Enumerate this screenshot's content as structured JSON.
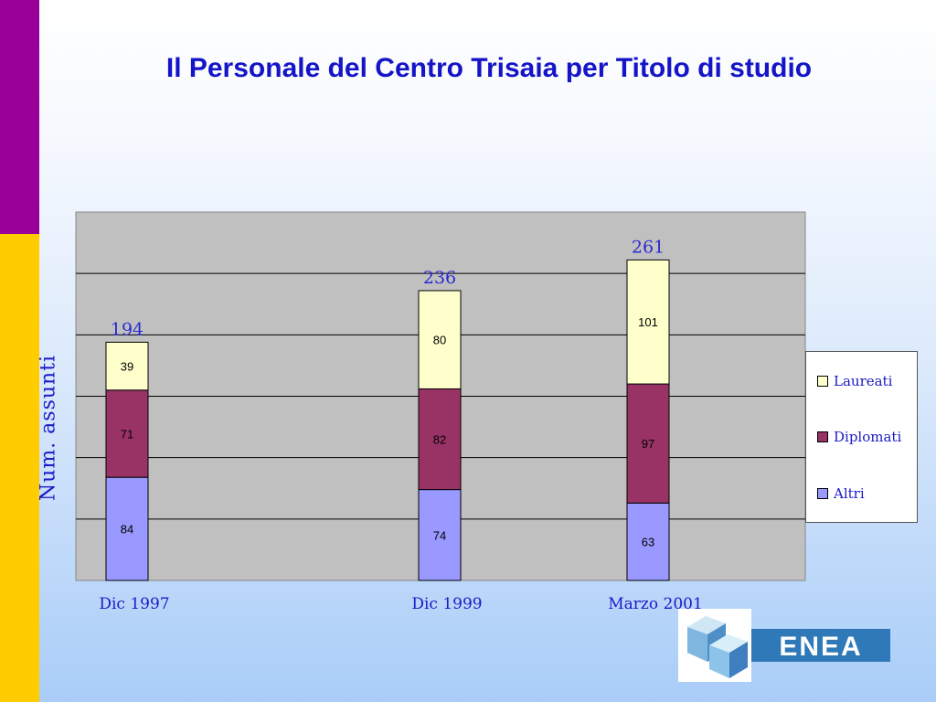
{
  "slide": {
    "title": "Il Personale del Centro Trisaia per Titolo di studio"
  },
  "colors": {
    "top_bar": "#990099",
    "bottom_bar": "#ffcc00",
    "plot_bg": "#c0c0c0",
    "title": "#1414c8"
  },
  "legend": {
    "items": [
      {
        "label": "Laureati",
        "color": "#ffffcc"
      },
      {
        "label": "Diplomati",
        "color": "#993366"
      },
      {
        "label": "Altri",
        "color": "#9999ff"
      }
    ]
  },
  "logo": {
    "text": "ENEA"
  },
  "chart_data": {
    "type": "bar",
    "stacked": true,
    "categories": [
      "Dic 1997",
      "Dic 1999",
      "Marzo 2001"
    ],
    "series": [
      {
        "name": "Altri",
        "values": [
          84,
          74,
          63
        ],
        "color": "#9999ff"
      },
      {
        "name": "Diplomati",
        "values": [
          71,
          82,
          97
        ],
        "color": "#993366"
      },
      {
        "name": "Laureati",
        "values": [
          39,
          80,
          101
        ],
        "color": "#ffffcc"
      }
    ],
    "totals": [
      194,
      236,
      261
    ],
    "ylabel": "Num.   assunti",
    "ylim": [
      0,
      300
    ],
    "grid": true,
    "legend_position": "right"
  }
}
